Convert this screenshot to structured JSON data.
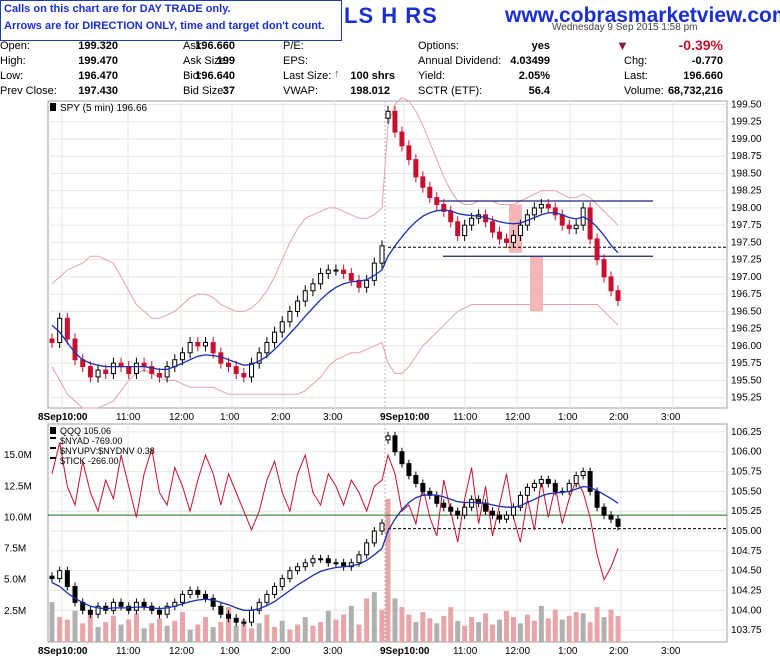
{
  "banner": {
    "notice_line1": "Calls on this chart are for DAY TRADE only.",
    "notice_line2": "Arrows are for DIRECTION ONLY, time and target don't count.",
    "brand": "www.cobrasmarketview.com",
    "title_fragment": "LS H RS",
    "date_fragment": "Wednesday  9 Sep 2015  1:58 pm"
  },
  "quote": {
    "rows": [
      [
        "Open:",
        "199.320",
        "Ask:",
        "196.660",
        "P/E:",
        "",
        "Options:",
        "yes",
        "",
        "-0.39%"
      ],
      [
        "High:",
        "199.470",
        "Ask Size:",
        "199",
        "EPS:",
        "",
        "Annual Dividend:",
        "4.03499",
        "Chg:",
        "-0.770"
      ],
      [
        "Low:",
        "196.470",
        "Bid:",
        "196.640",
        "Last Size:",
        "100 shrs",
        "Yield:",
        "2.05%",
        "Last:",
        "196.660"
      ],
      [
        "Prev Close:",
        "197.430",
        "Bid Size:",
        "37",
        "VWAP:",
        "198.012",
        "SCTR (ETF):",
        "56.4",
        "Volume:",
        "68,732,216"
      ]
    ]
  },
  "colors": {
    "up": "#000000",
    "down": "#c8102e",
    "ma": "#1a2fb0",
    "band": "#e8a0a8",
    "accent_blue": "#1a2fd0",
    "hline": "#1a237e",
    "qqq_level": "#1f6e1f",
    "nyad": "#c8102e",
    "shade": "#f4b6b6"
  },
  "chart_data": [
    {
      "type": "candlestick",
      "legend": "SPY (5 min) 196.66",
      "ylim": [
        195.1,
        199.55
      ],
      "y_ticks": [
        "199.50",
        "199.25",
        "199.00",
        "198.75",
        "198.50",
        "198.25",
        "198.00",
        "197.75",
        "197.50",
        "197.25",
        "197.00",
        "196.75",
        "196.50",
        "196.25",
        "196.00",
        "195.75",
        "195.50",
        "195.25"
      ],
      "x_ticks": [
        "8Sep10:00",
        "11:00",
        "12:00",
        "1:00",
        "2:00",
        "3:00",
        "9Sep10:00",
        "11:00",
        "12:00",
        "1:00",
        "2:00",
        "3:00"
      ],
      "closes": [
        196.05,
        196.4,
        196.1,
        195.8,
        195.7,
        195.55,
        195.65,
        195.6,
        195.75,
        195.7,
        195.6,
        195.75,
        195.7,
        195.6,
        195.55,
        195.7,
        195.8,
        195.9,
        196.05,
        196.0,
        196.05,
        195.9,
        195.75,
        195.7,
        195.6,
        195.55,
        195.75,
        195.9,
        196.05,
        196.2,
        196.35,
        196.5,
        196.65,
        196.8,
        196.9,
        197.05,
        197.1,
        197.1,
        197.05,
        196.95,
        196.85,
        196.95,
        197.2,
        197.45,
        199.4,
        199.1,
        198.9,
        198.7,
        198.45,
        198.3,
        198.15,
        198.05,
        197.95,
        197.8,
        197.6,
        197.75,
        197.85,
        197.9,
        197.8,
        197.65,
        197.55,
        197.5,
        197.6,
        197.75,
        197.9,
        198.0,
        198.05,
        198.0,
        197.9,
        197.75,
        197.7,
        197.75,
        198.0,
        197.55,
        197.25,
        197.0,
        196.8,
        196.66
      ],
      "moving_average": [
        196.3,
        196.2,
        196.05,
        195.9,
        195.8,
        195.75,
        195.72,
        195.7,
        195.7,
        195.7,
        195.7,
        195.7,
        195.7,
        195.68,
        195.66,
        195.66,
        195.7,
        195.75,
        195.8,
        195.85,
        195.87,
        195.86,
        195.84,
        195.8,
        195.76,
        195.72,
        195.73,
        195.78,
        195.85,
        195.95,
        196.06,
        196.18,
        196.3,
        196.43,
        196.55,
        196.67,
        196.77,
        196.85,
        196.9,
        196.93,
        196.94,
        196.96,
        197.02,
        197.1,
        197.3,
        197.45,
        197.58,
        197.7,
        197.8,
        197.88,
        197.93,
        197.96,
        197.97,
        197.96,
        197.92,
        197.9,
        197.89,
        197.88,
        197.86,
        197.83,
        197.8,
        197.78,
        197.77,
        197.78,
        197.82,
        197.86,
        197.9,
        197.93,
        197.93,
        197.9,
        197.86,
        197.84,
        197.87,
        197.82,
        197.72,
        197.6,
        197.46,
        197.35
      ],
      "upper_band": [
        196.9,
        197.0,
        197.1,
        197.15,
        197.2,
        197.3,
        197.3,
        197.25,
        197.2,
        197.0,
        196.8,
        196.6,
        196.5,
        196.4,
        196.4,
        196.45,
        196.5,
        196.6,
        196.7,
        196.75,
        196.75,
        196.7,
        196.6,
        196.55,
        196.5,
        196.5,
        196.55,
        196.65,
        196.8,
        197.0,
        197.25,
        197.5,
        197.7,
        197.85,
        197.9,
        197.95,
        198.0,
        198.0,
        197.95,
        197.9,
        197.85,
        197.85,
        197.9,
        198.0,
        199.2,
        199.5,
        199.6,
        199.55,
        199.4,
        199.2,
        198.95,
        198.7,
        198.45,
        198.25,
        198.1,
        198.05,
        198.05,
        198.1,
        198.1,
        198.1,
        198.05,
        198.05,
        198.05,
        198.1,
        198.15,
        198.2,
        198.25,
        198.25,
        198.25,
        198.2,
        198.15,
        198.15,
        198.2,
        198.15,
        198.05,
        197.95,
        197.85,
        197.75
      ],
      "lower_band": [
        195.7,
        195.5,
        195.3,
        195.2,
        195.1,
        195.1,
        195.1,
        195.15,
        195.2,
        195.35,
        195.5,
        195.6,
        195.65,
        195.6,
        195.55,
        195.5,
        195.5,
        195.45,
        195.4,
        195.4,
        195.4,
        195.4,
        195.35,
        195.3,
        195.3,
        195.3,
        195.3,
        195.3,
        195.3,
        195.3,
        195.3,
        195.3,
        195.3,
        195.35,
        195.45,
        195.55,
        195.7,
        195.8,
        195.85,
        195.9,
        195.9,
        195.95,
        196.0,
        196.05,
        195.75,
        195.6,
        195.6,
        195.7,
        195.85,
        196.0,
        196.1,
        196.2,
        196.3,
        196.4,
        196.5,
        196.55,
        196.6,
        196.6,
        196.6,
        196.6,
        196.6,
        196.6,
        196.6,
        196.6,
        196.6,
        196.6,
        196.6,
        196.6,
        196.6,
        196.6,
        196.6,
        196.6,
        196.6,
        196.6,
        196.6,
        196.5,
        196.4,
        196.3
      ],
      "level_lines": [
        198.1,
        197.3
      ],
      "prev_close_line": 197.43
    },
    {
      "type": "line",
      "legend": [
        "QQQ 105.06",
        "$NYAD -769.00",
        "$NYUPV:$NYDNV 0.38",
        "$TICK -266.00"
      ],
      "left_ylim": [
        0,
        17.5
      ],
      "left_ticks": [
        "15.0M",
        "12.5M",
        "10.0M",
        "7.5M",
        "5.0M",
        "2.5M"
      ],
      "right_ylim": [
        103.6,
        106.35
      ],
      "right_ticks": [
        "106.25",
        "106.00",
        "105.75",
        "105.50",
        "105.25",
        "105.00",
        "104.75",
        "104.50",
        "104.25",
        "104.00",
        "103.75"
      ],
      "x_ticks": [
        "8Sep10:00",
        "11:00",
        "12:00",
        "1:00",
        "2:00",
        "3:00",
        "9Sep10:00",
        "11:00",
        "12:00",
        "1:00",
        "2:00",
        "3:00"
      ],
      "qqq_closes": [
        104.4,
        104.5,
        104.3,
        104.1,
        104.0,
        103.95,
        104.05,
        104.0,
        104.1,
        104.05,
        104.0,
        104.1,
        104.05,
        104.0,
        103.95,
        104.05,
        104.1,
        104.2,
        104.25,
        104.2,
        104.15,
        104.05,
        103.95,
        103.9,
        103.85,
        103.85,
        104.0,
        104.1,
        104.2,
        104.3,
        104.4,
        104.5,
        104.55,
        104.6,
        104.65,
        104.65,
        104.6,
        104.6,
        104.55,
        104.6,
        104.7,
        104.85,
        105.0,
        105.1,
        106.2,
        106.0,
        105.85,
        105.7,
        105.6,
        105.5,
        105.45,
        105.35,
        105.3,
        105.25,
        105.2,
        105.3,
        105.4,
        105.35,
        105.25,
        105.2,
        105.15,
        105.2,
        105.3,
        105.45,
        105.55,
        105.6,
        105.65,
        105.6,
        105.5,
        105.5,
        105.6,
        105.7,
        105.75,
        105.5,
        105.3,
        105.2,
        105.15,
        105.06
      ],
      "qqq_ma": [
        104.35,
        104.3,
        104.22,
        104.15,
        104.1,
        104.05,
        104.03,
        104.02,
        104.03,
        104.03,
        104.03,
        104.04,
        104.04,
        104.03,
        104.02,
        104.03,
        104.05,
        104.08,
        104.11,
        104.13,
        104.14,
        104.13,
        104.1,
        104.07,
        104.03,
        104.0,
        104.0,
        104.02,
        104.06,
        104.11,
        104.18,
        104.25,
        104.32,
        104.38,
        104.44,
        104.49,
        104.52,
        104.54,
        104.55,
        104.56,
        104.58,
        104.63,
        104.7,
        104.78,
        105.0,
        105.15,
        105.27,
        105.36,
        105.42,
        105.45,
        105.46,
        105.45,
        105.43,
        105.4,
        105.37,
        105.36,
        105.36,
        105.36,
        105.35,
        105.33,
        105.31,
        105.3,
        105.3,
        105.32,
        105.36,
        105.4,
        105.44,
        105.47,
        105.48,
        105.49,
        105.5,
        105.53,
        105.56,
        105.55,
        105.51,
        105.46,
        105.41,
        105.35
      ],
      "nyad_millions": [
        13.5,
        16.0,
        12.5,
        11.0,
        14.5,
        12.0,
        10.5,
        13.0,
        11.5,
        15.0,
        12.5,
        10.0,
        13.5,
        15.5,
        12.0,
        11.0,
        14.0,
        12.5,
        10.5,
        13.0,
        15.0,
        13.5,
        11.0,
        13.5,
        12.0,
        10.5,
        9.0,
        10.5,
        13.0,
        14.5,
        12.0,
        10.5,
        13.5,
        15.0,
        12.0,
        11.0,
        13.5,
        12.5,
        11.0,
        13.0,
        12.0,
        10.5,
        12.5,
        13.0,
        15.0,
        13.5,
        10.5,
        11.0,
        9.5,
        12.5,
        10.0,
        8.5,
        13.0,
        10.5,
        8.0,
        11.5,
        14.0,
        9.5,
        12.5,
        8.5,
        11.0,
        13.5,
        10.0,
        8.0,
        11.5,
        9.0,
        13.0,
        10.0,
        12.5,
        9.5,
        11.5,
        13.0,
        12.0,
        10.0,
        7.0,
        5.0,
        6.0,
        7.5
      ],
      "volume_millions": [
        3.2,
        2.0,
        1.8,
        2.5,
        1.5,
        2.2,
        1.2,
        1.6,
        2.1,
        1.4,
        1.8,
        2.3,
        1.1,
        1.5,
        1.9,
        1.3,
        1.7,
        2.4,
        1.0,
        1.4,
        2.0,
        1.2,
        1.6,
        2.8,
        1.3,
        1.8,
        1.1,
        1.5,
        2.2,
        1.2,
        1.7,
        1.0,
        1.4,
        2.0,
        1.3,
        1.6,
        2.5,
        1.8,
        2.2,
        2.9,
        1.4,
        3.5,
        4.0,
        2.6,
        11.5,
        3.5,
        2.8,
        2.2,
        1.6,
        2.4,
        1.9,
        1.5,
        2.1,
        2.8,
        1.7,
        1.3,
        2.0,
        1.6,
        2.3,
        1.4,
        1.8,
        2.5,
        2.0,
        1.5,
        2.2,
        1.7,
        2.9,
        1.9,
        2.6,
        1.8,
        2.1,
        2.4,
        2.3,
        1.6,
        2.8,
        2.0,
        2.6,
        2.1
      ],
      "level_line": 105.2,
      "prev_close_line": 105.03
    }
  ]
}
